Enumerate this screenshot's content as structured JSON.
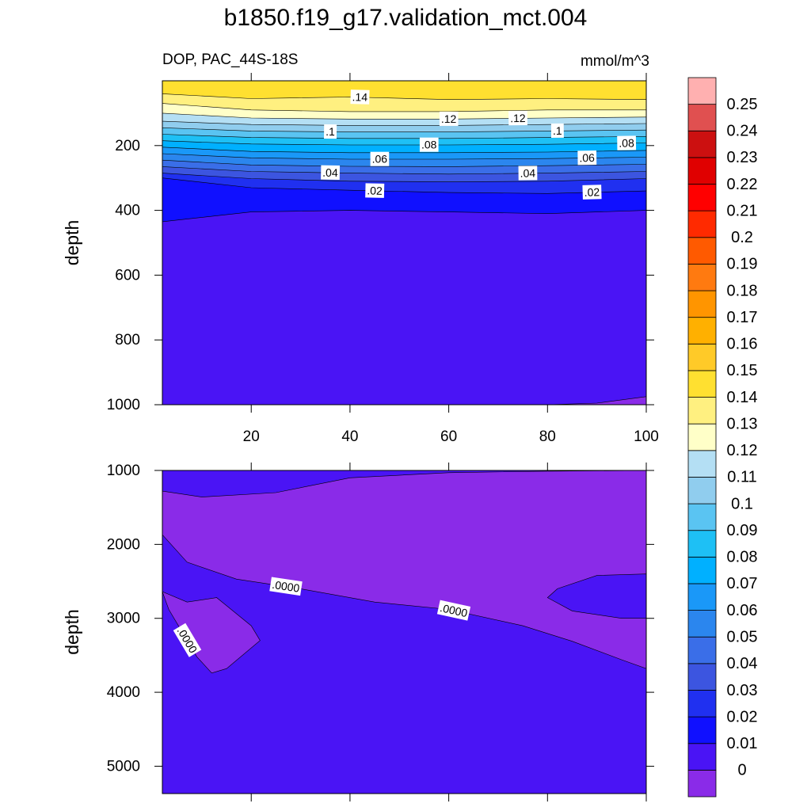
{
  "chart_data": {
    "type": "contour",
    "title": "b1850.f19_g17.validation_mct.004",
    "subtitle": "DOP, PAC_44S-18S",
    "units": "mmol/m^3",
    "colorbar": {
      "levels": [
        0,
        0.01,
        0.02,
        0.03,
        0.04,
        0.05,
        0.06,
        0.07,
        0.08,
        0.09,
        0.1,
        0.11,
        0.12,
        0.13,
        0.14,
        0.15,
        0.16,
        0.17,
        0.18,
        0.19,
        0.2,
        0.21,
        0.22,
        0.23,
        0.24,
        0.25
      ],
      "colors": [
        "#8a2be8",
        "#4a14f5",
        "#1010ff",
        "#2030f0",
        "#3c55e0",
        "#3a6ee8",
        "#2b86ee",
        "#1a98f8",
        "#00b0ff",
        "#1ec0f5",
        "#5ac4f2",
        "#90cdee",
        "#b4dff4",
        "#ffffc8",
        "#fff080",
        "#ffe030",
        "#ffca28",
        "#ffb000",
        "#ff9500",
        "#ff7a10",
        "#ff5a00",
        "#ff2a00",
        "#ff0000",
        "#e00000",
        "#cc1010",
        "#e05050",
        "#ffb0b0"
      ]
    },
    "panels": [
      {
        "ylabel": "depth",
        "xlim": [
          2,
          100
        ],
        "xticks": [
          20,
          40,
          60,
          80,
          100
        ],
        "xtick_labels": true,
        "ylim": [
          0,
          1000
        ],
        "yticks": [
          200,
          400,
          600,
          800,
          1000
        ],
        "background": "#ffe030",
        "contours": [
          {
            "level": 0.14,
            "x": [
              2,
              20,
              40,
              60,
              80,
              100
            ],
            "depth": [
              40,
              55,
              50,
              58,
              55,
              58
            ],
            "fill": "#fff080",
            "label": ".14",
            "label_x": [
              42
            ]
          },
          {
            "level": 0.13,
            "x": [
              2,
              20,
              40,
              60,
              80,
              100
            ],
            "depth": [
              70,
              90,
              95,
              95,
              90,
              90
            ],
            "fill": "#ffffc8"
          },
          {
            "level": 0.12,
            "x": [
              2,
              20,
              40,
              60,
              80,
              100
            ],
            "depth": [
              100,
              115,
              118,
              118,
              115,
              112
            ],
            "fill": "#b4dff4",
            "label": ".12",
            "label_x": [
              60,
              74
            ]
          },
          {
            "level": 0.11,
            "x": [
              2,
              20,
              40,
              60,
              80,
              100
            ],
            "depth": [
              125,
              135,
              138,
              138,
              135,
              132
            ],
            "fill": "#90cdee"
          },
          {
            "level": 0.1,
            "x": [
              2,
              20,
              40,
              60,
              80,
              100
            ],
            "depth": [
              145,
              155,
              158,
              158,
              155,
              152
            ],
            "fill": "#5ac4f2",
            "label": ".1",
            "label_x": [
              36,
              82
            ]
          },
          {
            "level": 0.09,
            "x": [
              2,
              20,
              40,
              60,
              80,
              100
            ],
            "depth": [
              165,
              175,
              178,
              178,
              175,
              172
            ],
            "fill": "#1ec0f5"
          },
          {
            "level": 0.08,
            "x": [
              2,
              20,
              40,
              60,
              80,
              100
            ],
            "depth": [
              185,
              195,
              198,
              198,
              196,
              192
            ],
            "fill": "#00b0ff",
            "label": ".08",
            "label_x": [
              56,
              96
            ]
          },
          {
            "level": 0.07,
            "x": [
              2,
              20,
              40,
              60,
              80,
              100
            ],
            "depth": [
              205,
              218,
              222,
              222,
              220,
              215
            ],
            "fill": "#1a98f8"
          },
          {
            "level": 0.06,
            "x": [
              2,
              20,
              40,
              60,
              80,
              100
            ],
            "depth": [
              225,
              238,
              242,
              242,
              240,
              236
            ],
            "fill": "#2b86ee",
            "label": ".06",
            "label_x": [
              46,
              88
            ]
          },
          {
            "level": 0.05,
            "x": [
              2,
              20,
              40,
              60,
              80,
              100
            ],
            "depth": [
              245,
              260,
              264,
              265,
              262,
              258
            ],
            "fill": "#3a6ee8"
          },
          {
            "level": 0.04,
            "x": [
              2,
              20,
              40,
              60,
              80,
              100
            ],
            "depth": [
              265,
              280,
              285,
              288,
              285,
              280
            ],
            "fill": "#3c55e0",
            "label": ".04",
            "label_x": [
              36,
              76
            ]
          },
          {
            "level": 0.03,
            "x": [
              2,
              20,
              40,
              60,
              80,
              100
            ],
            "depth": [
              285,
              302,
              310,
              312,
              310,
              302
            ],
            "fill": "#2030f0"
          },
          {
            "level": 0.02,
            "x": [
              2,
              20,
              40,
              60,
              80,
              100
            ],
            "depth": [
              300,
              330,
              338,
              345,
              348,
              340
            ],
            "fill": "#1010ff",
            "label": ".02",
            "label_x": [
              45,
              89
            ]
          },
          {
            "level": 0.01,
            "x": [
              2,
              20,
              40,
              60,
              80,
              100
            ],
            "depth": [
              435,
              405,
              400,
              405,
              410,
              400
            ],
            "fill": "#4a14f5"
          },
          {
            "level": 0,
            "x": [
              70,
              80,
              90,
              100
            ],
            "depth": [
              1010,
              1000,
              995,
              975
            ],
            "fill": "#8a2be8"
          }
        ]
      },
      {
        "ylabel": "depth",
        "xlim": [
          2,
          100
        ],
        "xticks": [
          20,
          40,
          60,
          80,
          100
        ],
        "xtick_labels": false,
        "ylim": [
          1000,
          5370
        ],
        "yticks": [
          1000,
          2000,
          3000,
          4000,
          5000
        ],
        "background": "#4a14f5",
        "contours": [
          {
            "level": 0,
            "closed": true,
            "x": [
              2,
              7,
              17,
              30,
              45,
              60,
              75,
              85,
              95,
              100,
              100,
              80,
              60,
              40,
              25,
              10,
              2
            ],
            "depth": [
              1870,
              2240,
              2470,
              2600,
              2780,
              2880,
              3100,
              3310,
              3560,
              3680,
              1000,
              1010,
              1030,
              1100,
              1300,
              1360,
              1280
            ],
            "fill": "#8a2be8",
            "label": ".0000",
            "label_x": [
              27,
              61
            ]
          },
          {
            "level": 0,
            "closed": true,
            "x": [
              100,
              90,
              82,
              80,
              85,
              95,
              100
            ],
            "depth": [
              2400,
              2420,
              2600,
              2720,
              2900,
              3000,
              3000
            ],
            "fill": "#4a14f5"
          },
          {
            "level": 0,
            "closed": true,
            "x": [
              3.3,
              9,
              12,
              15,
              21.8,
              20,
              13,
              7,
              2
            ],
            "depth": [
              2880,
              3520,
              3740,
              3680,
              3300,
              3100,
              2720,
              2780,
              2640
            ],
            "fill": "#8a2be8",
            "label": ".0000",
            "label_x": [
              7
            ]
          }
        ]
      }
    ]
  }
}
